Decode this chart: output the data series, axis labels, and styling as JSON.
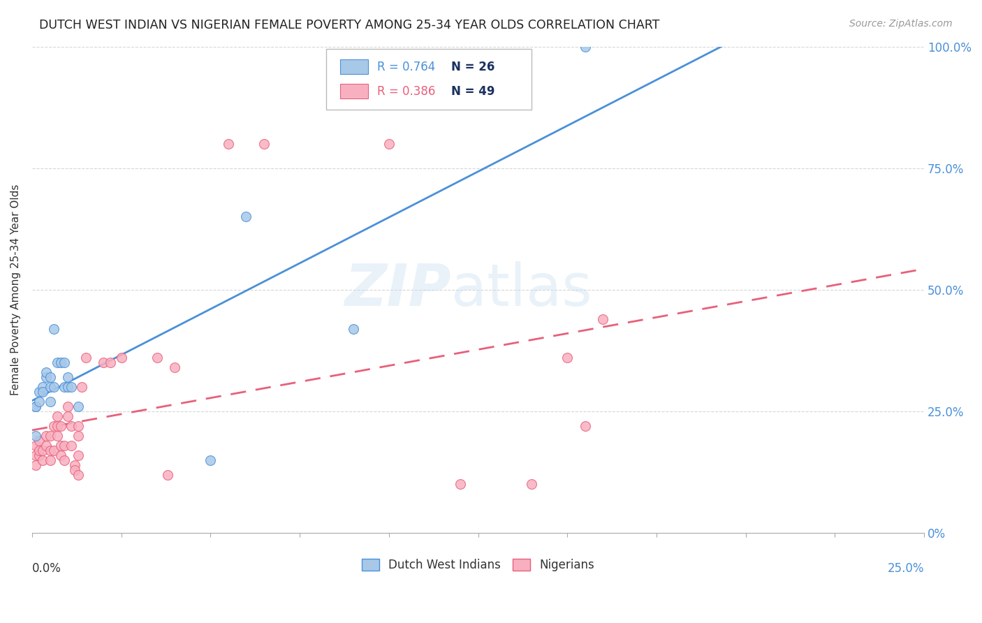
{
  "title": "DUTCH WEST INDIAN VS NIGERIAN FEMALE POVERTY AMONG 25-34 YEAR OLDS CORRELATION CHART",
  "source": "Source: ZipAtlas.com",
  "ylabel": "Female Poverty Among 25-34 Year Olds",
  "blue_R": "0.764",
  "blue_N": "26",
  "pink_R": "0.386",
  "pink_N": "49",
  "blue_color": "#a8c8e8",
  "pink_color": "#f8b0c0",
  "blue_line_color": "#4a90d9",
  "pink_line_color": "#e8607a",
  "watermark_zip": "ZIP",
  "watermark_atlas": "atlas",
  "background_color": "#ffffff",
  "xlim": [
    0,
    0.25
  ],
  "ylim": [
    0,
    1.0
  ],
  "ytick_values": [
    0,
    0.25,
    0.5,
    0.75,
    1.0
  ],
  "ytick_labels": [
    "0%",
    "25.0%",
    "50.0%",
    "75.0%",
    "100.0%"
  ],
  "xtick_label_left": "0.0%",
  "xtick_label_right": "25.0%",
  "dutch_west_indians_x": [
    0.001,
    0.001,
    0.001,
    0.002,
    0.002,
    0.003,
    0.003,
    0.004,
    0.004,
    0.005,
    0.005,
    0.005,
    0.006,
    0.006,
    0.007,
    0.008,
    0.009,
    0.009,
    0.01,
    0.01,
    0.011,
    0.013,
    0.05,
    0.06,
    0.09,
    0.155
  ],
  "dutch_west_indians_y": [
    0.2,
    0.26,
    0.26,
    0.27,
    0.29,
    0.3,
    0.29,
    0.32,
    0.33,
    0.32,
    0.3,
    0.27,
    0.42,
    0.3,
    0.35,
    0.35,
    0.3,
    0.35,
    0.32,
    0.3,
    0.3,
    0.26,
    0.15,
    0.65,
    0.42,
    1.0
  ],
  "nigerians_x": [
    0.001,
    0.001,
    0.001,
    0.002,
    0.002,
    0.002,
    0.003,
    0.003,
    0.004,
    0.004,
    0.005,
    0.005,
    0.005,
    0.006,
    0.006,
    0.007,
    0.007,
    0.007,
    0.008,
    0.008,
    0.008,
    0.009,
    0.009,
    0.01,
    0.01,
    0.011,
    0.011,
    0.012,
    0.012,
    0.013,
    0.013,
    0.013,
    0.013,
    0.014,
    0.015,
    0.02,
    0.022,
    0.025,
    0.035,
    0.038,
    0.04,
    0.055,
    0.065,
    0.1,
    0.12,
    0.14,
    0.15,
    0.155,
    0.16
  ],
  "nigerians_y": [
    0.18,
    0.16,
    0.14,
    0.19,
    0.16,
    0.17,
    0.17,
    0.15,
    0.18,
    0.2,
    0.2,
    0.17,
    0.15,
    0.22,
    0.17,
    0.22,
    0.24,
    0.2,
    0.22,
    0.18,
    0.16,
    0.18,
    0.15,
    0.26,
    0.24,
    0.22,
    0.18,
    0.14,
    0.13,
    0.22,
    0.2,
    0.16,
    0.12,
    0.3,
    0.36,
    0.35,
    0.35,
    0.36,
    0.36,
    0.12,
    0.34,
    0.8,
    0.8,
    0.8,
    0.1,
    0.1,
    0.36,
    0.22,
    0.44
  ]
}
